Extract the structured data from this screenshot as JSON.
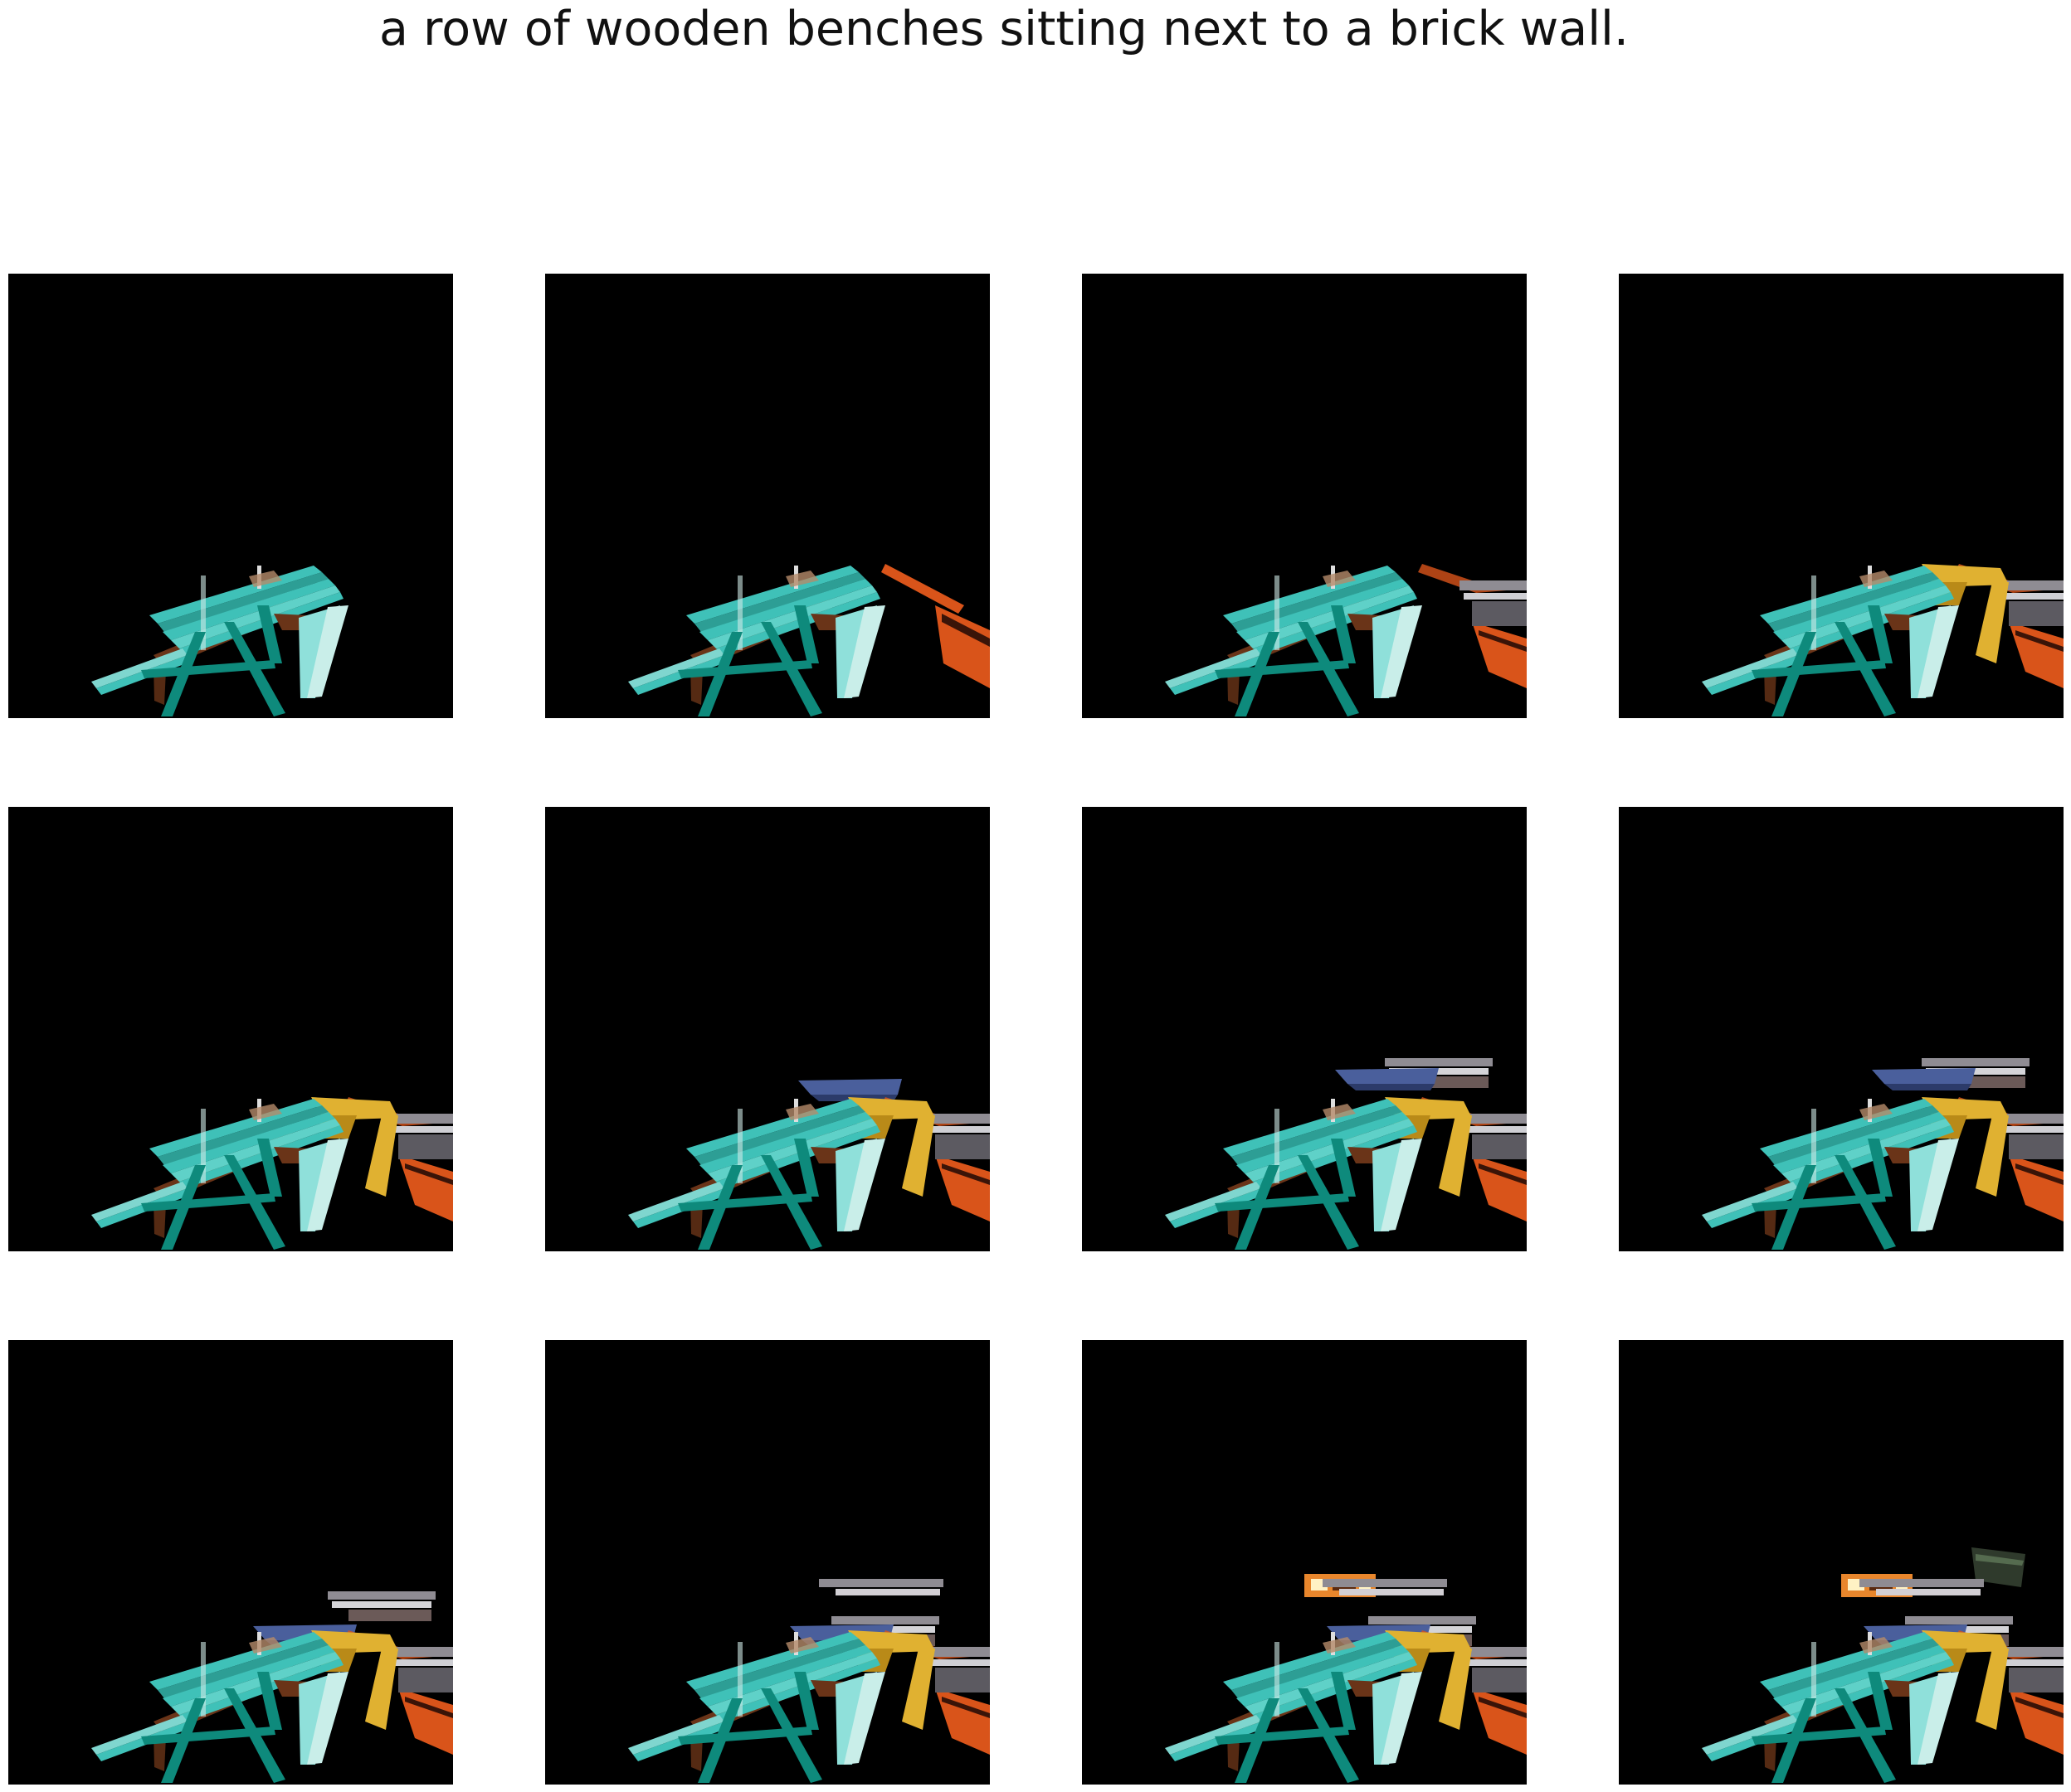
{
  "caption": "a row of wooden benches sitting next to a brick wall.",
  "grid": {
    "rows": 3,
    "cols": 4
  },
  "frames": [
    {
      "index": 1,
      "objects": [
        "teal-picnic-table"
      ]
    },
    {
      "index": 2,
      "objects": [
        "teal-picnic-table",
        "orange-bench"
      ]
    },
    {
      "index": 3,
      "objects": [
        "teal-picnic-table",
        "orange-bench",
        "gray-bench"
      ]
    },
    {
      "index": 4,
      "objects": [
        "teal-picnic-table",
        "orange-bench",
        "gray-bench",
        "yellow-bench"
      ]
    },
    {
      "index": 5,
      "objects": [
        "teal-picnic-table",
        "orange-bench",
        "gray-bench",
        "yellow-bench"
      ]
    },
    {
      "index": 6,
      "objects": [
        "teal-picnic-table",
        "orange-bench",
        "gray-bench",
        "yellow-bench",
        "blue-bench"
      ]
    },
    {
      "index": 7,
      "objects": [
        "teal-picnic-table",
        "orange-bench",
        "gray-bench",
        "yellow-bench",
        "blue-bench",
        "gray-bench-back"
      ]
    },
    {
      "index": 8,
      "objects": [
        "teal-picnic-table",
        "orange-bench",
        "gray-bench",
        "yellow-bench",
        "blue-bench",
        "gray-bench-back"
      ]
    },
    {
      "index": 9,
      "objects": [
        "teal-picnic-table",
        "orange-bench",
        "gray-bench",
        "yellow-bench",
        "blue-bench",
        "gray-bench-back"
      ]
    },
    {
      "index": 10,
      "objects": [
        "teal-picnic-table",
        "orange-bench",
        "gray-bench",
        "yellow-bench",
        "blue-bench",
        "gray-bench-back",
        "gray-bench-top"
      ]
    },
    {
      "index": 11,
      "objects": [
        "teal-picnic-table",
        "orange-bench",
        "gray-bench",
        "yellow-bench",
        "blue-bench",
        "gray-bench-back",
        "gray-bench-top",
        "brick-sign"
      ]
    },
    {
      "index": 12,
      "objects": [
        "teal-picnic-table",
        "orange-bench",
        "gray-bench",
        "yellow-bench",
        "blue-bench",
        "gray-bench-back",
        "gray-bench-top",
        "brick-sign",
        "dark-green-bench"
      ]
    }
  ],
  "colors": {
    "background": "#000000",
    "teal": "#3fc1b8",
    "teal_dark": "#0e8a7c",
    "rust": "#6a3418",
    "orange": "#d9541a",
    "gray": "#8f8c93",
    "yellow": "#e0b131",
    "blue": "#4a5f9c",
    "brick": "#e8862c",
    "dark_green": "#2f3a2c"
  }
}
